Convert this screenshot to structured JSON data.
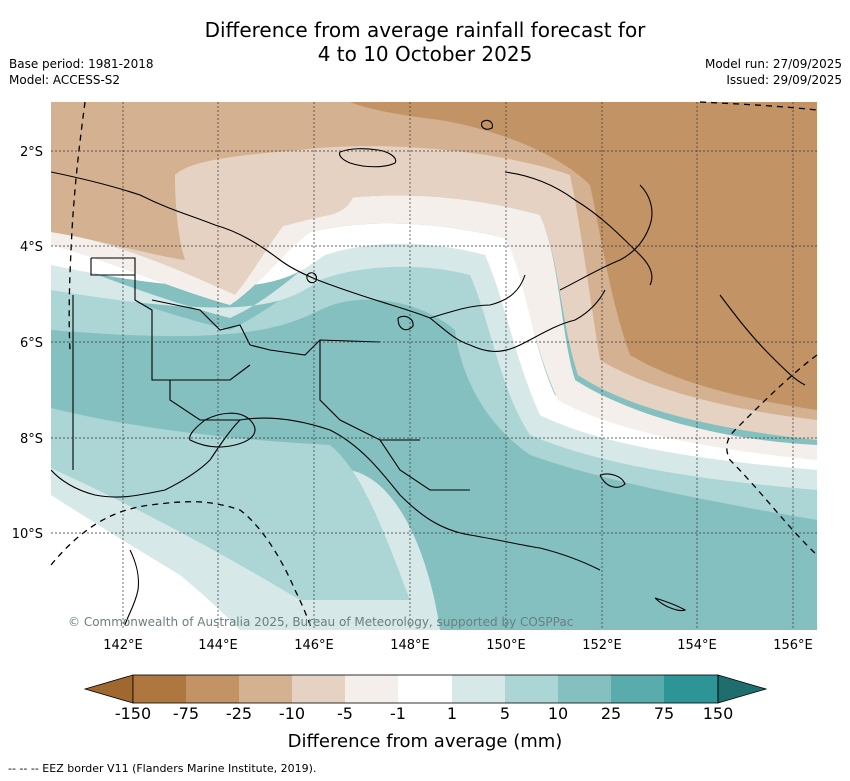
{
  "header": {
    "title_line1": "Difference from average rainfall forecast for",
    "title_line2": "4 to 10 October 2025",
    "base_period": "Base period: 1981-2018",
    "model": "Model: ACCESS-S2",
    "model_run": "Model run: 27/09/2025",
    "issued": "Issued: 29/09/2025"
  },
  "map": {
    "lat_labels": [
      "2°S",
      "4°S",
      "6°S",
      "8°S",
      "10°S"
    ],
    "lon_labels": [
      "142°E",
      "144°E",
      "146°E",
      "148°E",
      "150°E",
      "152°E",
      "154°E",
      "156°E"
    ],
    "copyright": "© Commonwealth of Australia 2025, Bureau of Meteorology, supported by COSPPac"
  },
  "colorbar": {
    "title": "Difference from average (mm)",
    "tick_labels": [
      "-150",
      "-75",
      "-25",
      "-10",
      "-5",
      "-1",
      "1",
      "5",
      "10",
      "25",
      "75",
      "150"
    ],
    "colors": {
      "extend_low": "#a0672f",
      "c1": "#ad773f",
      "c2": "#c19365",
      "c3": "#d3b191",
      "c4": "#e6d2c2",
      "c5": "#f4efea",
      "c6": "#ffffff",
      "c7": "#d6e9e8",
      "c8": "#acd5d5",
      "c9": "#85c0c0",
      "c10": "#5aacac",
      "c11": "#2d9595",
      "extend_high": "#1e6e6e"
    }
  },
  "footer": {
    "legend_text": "-- -- -- EEZ border V11 (Flanders Marine Institute, 2019)."
  }
}
